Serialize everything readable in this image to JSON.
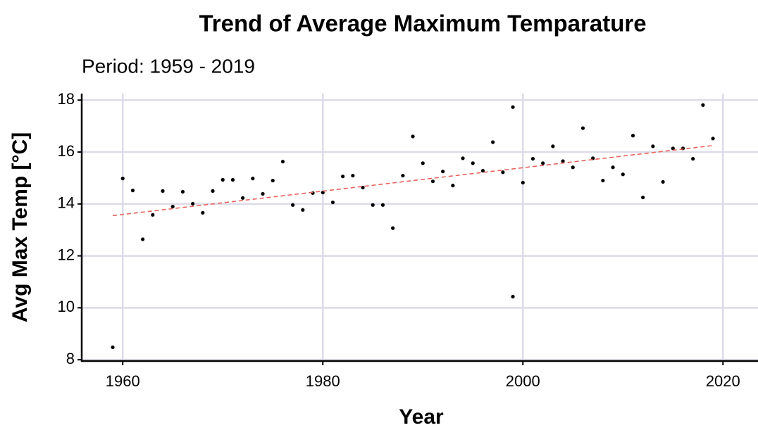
{
  "chart_data": {
    "type": "scatter",
    "title": "Trend of Average Maximum Temparature",
    "subtitle": "Period: 1959 - 2019",
    "x_label": "Year",
    "y_label": "Avg Max Temp [°C]",
    "x": [
      1959,
      1960,
      1961,
      1962,
      1963,
      1964,
      1965,
      1966,
      1967,
      1968,
      1969,
      1970,
      1971,
      1972,
      1973,
      1974,
      1975,
      1976,
      1977,
      1978,
      1979,
      1980,
      1981,
      1982,
      1983,
      1984,
      1985,
      1986,
      1987,
      1988,
      1989,
      1990,
      1991,
      1992,
      1993,
      1994,
      1995,
      1996,
      1997,
      1998,
      1999,
      1999,
      2000,
      2001,
      2002,
      2003,
      2004,
      2005,
      2006,
      2007,
      2008,
      2009,
      2010,
      2011,
      2012,
      2013,
      2014,
      2015,
      2016,
      2017,
      2018,
      2019
    ],
    "values": [
      8.48,
      14.98,
      14.52,
      12.64,
      13.58,
      14.5,
      13.9,
      14.47,
      14.01,
      13.66,
      14.5,
      14.93,
      14.93,
      14.23,
      14.98,
      14.39,
      14.9,
      15.63,
      13.96,
      13.77,
      14.42,
      14.44,
      14.06,
      15.06,
      15.09,
      14.63,
      13.96,
      13.96,
      13.07,
      15.09,
      16.6,
      15.57,
      14.87,
      15.25,
      14.71,
      15.76,
      15.57,
      15.28,
      16.38,
      15.22,
      17.73,
      10.43,
      14.82,
      15.74,
      15.57,
      16.22,
      15.65,
      15.41,
      16.92,
      15.76,
      14.9,
      15.41,
      15.14,
      16.63,
      14.25,
      16.22,
      14.85,
      16.14,
      16.14,
      15.74,
      17.81,
      16.52
    ],
    "color": "#000000",
    "trend": {
      "x": [
        1959,
        2019
      ],
      "y": [
        13.55,
        16.25
      ],
      "color": "#e8625a"
    },
    "xlim": [
      1955.9,
      2023.5
    ],
    "xticks": [
      1960,
      1980,
      2000,
      2020
    ],
    "ylim": [
      7.95,
      18.25
    ],
    "yticks": [
      8,
      10,
      12,
      14,
      16,
      18
    ],
    "grid": true
  }
}
